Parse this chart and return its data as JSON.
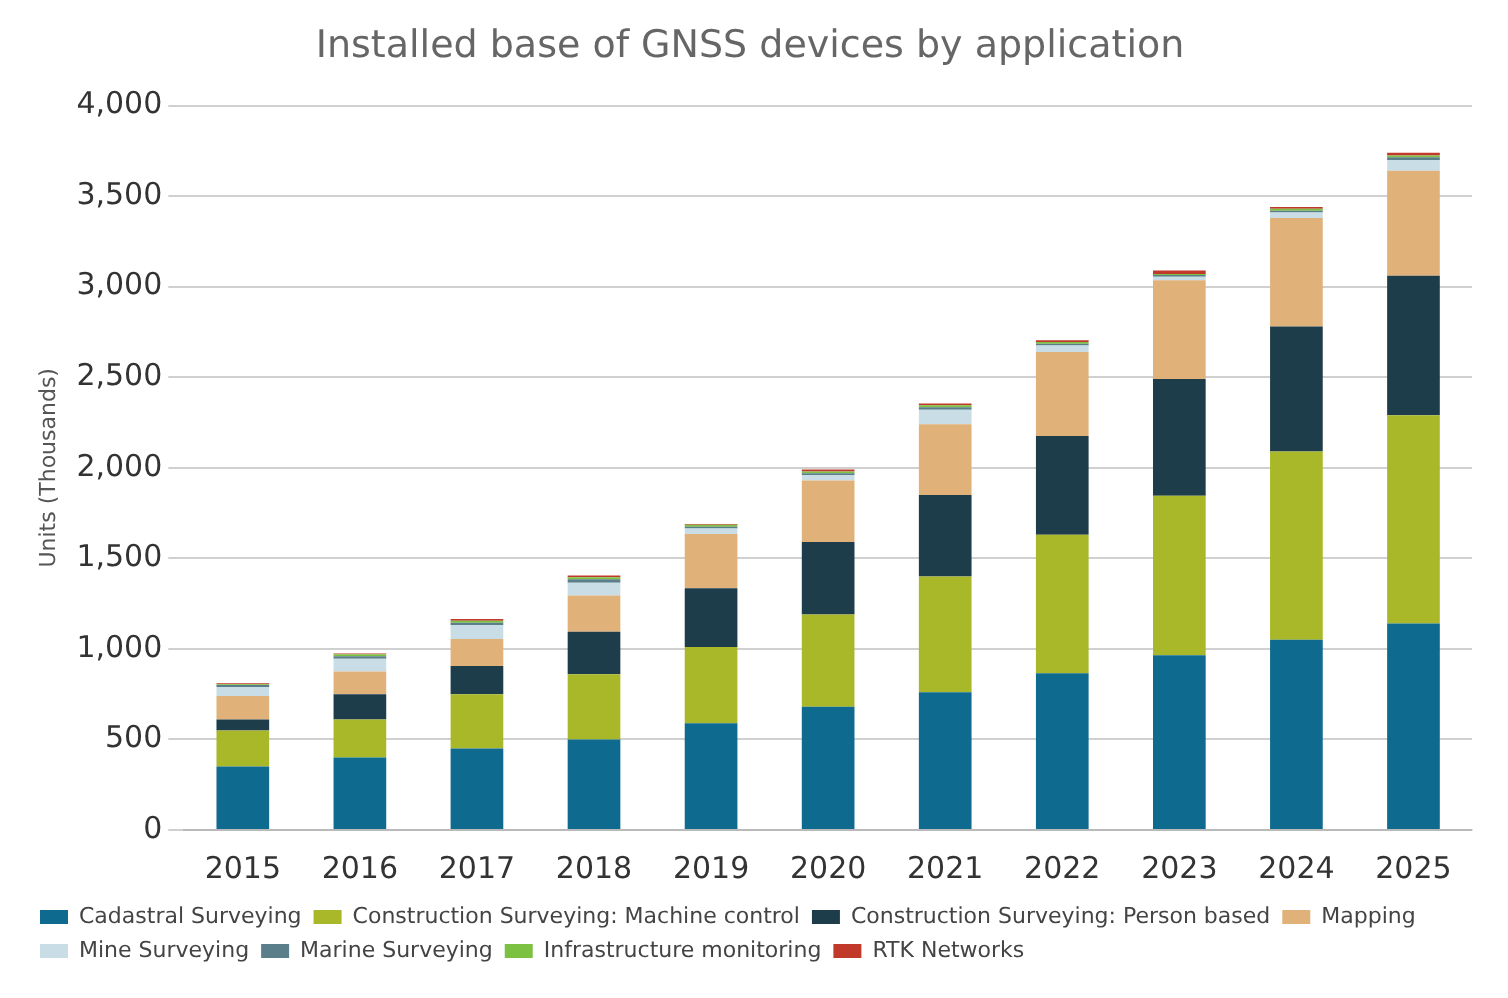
{
  "chart_data": {
    "type": "bar",
    "title": "Installed base of GNSS devices by application",
    "ylabel": "Units (Thousands)",
    "categories": [
      "2015",
      "2016",
      "2017",
      "2018",
      "2019",
      "2020",
      "2021",
      "2022",
      "2023",
      "2024",
      "2025"
    ],
    "stacked": true,
    "ylim": [
      0,
      4000
    ],
    "yticks": [
      {
        "value": 0,
        "label": "0"
      },
      {
        "value": 500,
        "label": "500"
      },
      {
        "value": 1000,
        "label": "1,000"
      },
      {
        "value": 1500,
        "label": "1,500"
      },
      {
        "value": 2000,
        "label": "2,000"
      },
      {
        "value": 2500,
        "label": "2,500"
      },
      {
        "value": 3000,
        "label": "3,000"
      },
      {
        "value": 3500,
        "label": "3,500"
      },
      {
        "value": 4000,
        "label": "4,000"
      }
    ],
    "grid": "y",
    "legend": "bottom",
    "series": [
      {
        "name": "Cadastral Surveying",
        "color": "#0e6a8f",
        "values": [
          350,
          400,
          450,
          500,
          590,
          680,
          760,
          865,
          965,
          1050,
          1140
        ]
      },
      {
        "name": "Construction Surveying: Machine control",
        "color": "#a8b828",
        "values": [
          200,
          210,
          300,
          360,
          420,
          510,
          640,
          765,
          880,
          1040,
          1150
        ]
      },
      {
        "name": "Construction Surveying: Person based",
        "color": "#1e3d4a",
        "values": [
          60,
          140,
          155,
          235,
          325,
          400,
          450,
          545,
          645,
          690,
          770
        ]
      },
      {
        "name": "Mapping",
        "color": "#e0b27a",
        "values": [
          130,
          125,
          150,
          200,
          300,
          340,
          390,
          465,
          545,
          600,
          580
        ]
      },
      {
        "name": "Mine Surveying",
        "color": "#c8dde6",
        "values": [
          50,
          70,
          75,
          70,
          30,
          30,
          80,
          35,
          20,
          30,
          60
        ]
      },
      {
        "name": "Marine Surveying",
        "color": "#5a7f8a",
        "values": [
          10,
          15,
          15,
          20,
          10,
          10,
          15,
          10,
          10,
          10,
          15
        ]
      },
      {
        "name": "Infrastructure monitoring",
        "color": "#7dc142",
        "values": [
          5,
          10,
          10,
          10,
          10,
          10,
          10,
          10,
          5,
          10,
          10
        ]
      },
      {
        "name": "RTK Networks",
        "color": "#c0392b",
        "values": [
          5,
          5,
          10,
          10,
          5,
          10,
          10,
          10,
          20,
          10,
          15
        ]
      }
    ]
  }
}
